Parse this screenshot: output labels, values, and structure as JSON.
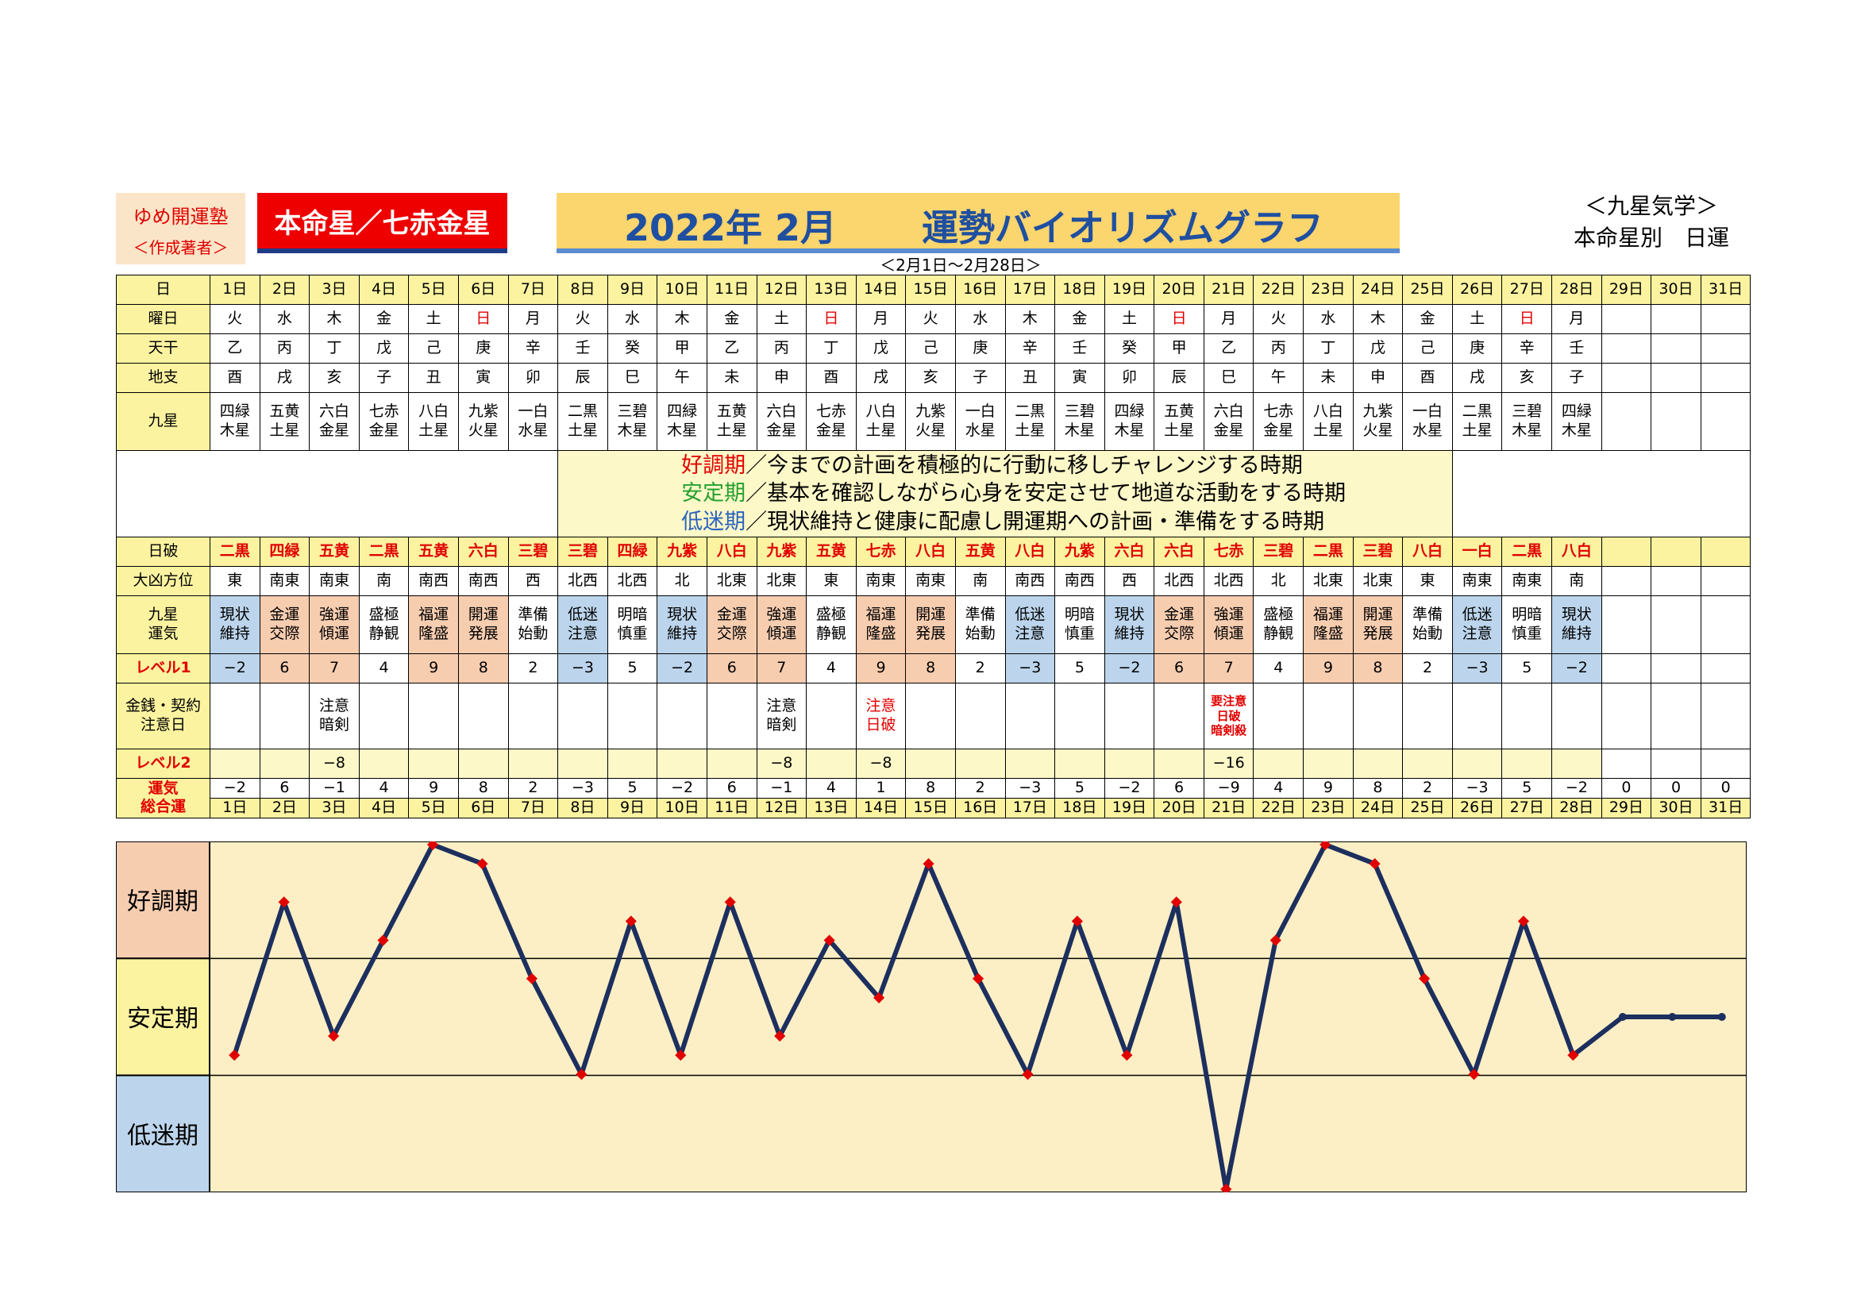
{
  "header": {
    "author_line1": "ゆめ開運塾",
    "author_line2": "＜作成著者＞",
    "honmeisei": "本命星／七赤金星",
    "title_date": "2022年 2月",
    "title_name": "運勢バイオリズムグラフ",
    "range": "＜2月1日～2月28日＞",
    "top_right_1": "＜九星気学＞",
    "top_right_2": "本命星別　日運"
  },
  "labels": {
    "day": "日",
    "weekday": "曜日",
    "tenkan": "天干",
    "chishi": "地支",
    "kyusei": "九星",
    "nichiha": "日破",
    "daikyo": "大凶方位",
    "unki": "九星\n運気",
    "level1": "レベル1",
    "kinsen": "金銭・契約\n注意日",
    "level2": "レベル2",
    "sogo": "運気\n総合運",
    "band_good": "好調期",
    "band_stable": "安定期",
    "band_low": "低迷期"
  },
  "legend": {
    "good_term": "好調期",
    "good_text": "／今までの計画を積極的に行動に移しチャレンジする時期",
    "stable_term": "安定期",
    "stable_text": "／基本を確認しながら心身を安定させて地道な活動をする時期",
    "low_term": "低迷期",
    "low_text": "／現状維持と健康に配慮し開運期への計画・準備をする時期"
  },
  "days": [
    "1日",
    "2日",
    "3日",
    "4日",
    "5日",
    "6日",
    "7日",
    "8日",
    "9日",
    "10日",
    "11日",
    "12日",
    "13日",
    "14日",
    "15日",
    "16日",
    "17日",
    "18日",
    "19日",
    "20日",
    "21日",
    "22日",
    "23日",
    "24日",
    "25日",
    "26日",
    "27日",
    "28日",
    "29日",
    "30日",
    "31日"
  ],
  "weekdays": [
    "火",
    "水",
    "木",
    "金",
    "土",
    "日",
    "月",
    "火",
    "水",
    "木",
    "金",
    "土",
    "日",
    "月",
    "火",
    "水",
    "木",
    "金",
    "土",
    "日",
    "月",
    "火",
    "水",
    "木",
    "金",
    "土",
    "日",
    "月"
  ],
  "tenkan": [
    "乙",
    "丙",
    "丁",
    "戊",
    "己",
    "庚",
    "辛",
    "壬",
    "癸",
    "甲",
    "乙",
    "丙",
    "丁",
    "戊",
    "己",
    "庚",
    "辛",
    "壬",
    "癸",
    "甲",
    "乙",
    "丙",
    "丁",
    "戊",
    "己",
    "庚",
    "辛",
    "壬"
  ],
  "chishi": [
    "酉",
    "戌",
    "亥",
    "子",
    "丑",
    "寅",
    "卯",
    "辰",
    "巳",
    "午",
    "未",
    "申",
    "酉",
    "戌",
    "亥",
    "子",
    "丑",
    "寅",
    "卯",
    "辰",
    "巳",
    "午",
    "未",
    "申",
    "酉",
    "戌",
    "亥",
    "子"
  ],
  "kyusei": [
    "四緑\n木星",
    "五黄\n土星",
    "六白\n金星",
    "七赤\n金星",
    "八白\n土星",
    "九紫\n火星",
    "一白\n水星",
    "二黒\n土星",
    "三碧\n木星",
    "四緑\n木星",
    "五黄\n土星",
    "六白\n金星",
    "七赤\n金星",
    "八白\n土星",
    "九紫\n火星",
    "一白\n水星",
    "二黒\n土星",
    "三碧\n木星",
    "四緑\n木星",
    "五黄\n土星",
    "六白\n金星",
    "七赤\n金星",
    "八白\n土星",
    "九紫\n火星",
    "一白\n水星",
    "二黒\n土星",
    "三碧\n木星",
    "四緑\n木星"
  ],
  "nichiha": [
    "二黒",
    "四緑",
    "五黄",
    "二黒",
    "五黄",
    "六白",
    "三碧",
    "三碧",
    "四緑",
    "九紫",
    "八白",
    "九紫",
    "五黄",
    "七赤",
    "八白",
    "五黄",
    "八白",
    "九紫",
    "六白",
    "六白",
    "七赤",
    "三碧",
    "二黒",
    "三碧",
    "八白",
    "一白",
    "二黒",
    "八白"
  ],
  "daikyo": [
    "東",
    "南東",
    "南東",
    "南",
    "南西",
    "南西",
    "西",
    "北西",
    "北西",
    "北",
    "北東",
    "北東",
    "東",
    "南東",
    "南東",
    "南",
    "南西",
    "南西",
    "西",
    "北西",
    "北西",
    "北",
    "北東",
    "北東",
    "東",
    "南東",
    "南東",
    "南"
  ],
  "unki": [
    "現状\n維持",
    "金運\n交際",
    "強運\n傾運",
    "盛極\n静観",
    "福運\n隆盛",
    "開運\n発展",
    "準備\n始動",
    "低迷\n注意",
    "明暗\n慎重",
    "現状\n維持",
    "金運\n交際",
    "強運\n傾運",
    "盛極\n静観",
    "福運\n隆盛",
    "開運\n発展",
    "準備\n始動",
    "低迷\n注意",
    "明暗\n慎重",
    "現状\n維持",
    "金運\n交際",
    "強運\n傾運",
    "盛極\n静観",
    "福運\n隆盛",
    "開運\n発展",
    "準備\n始動",
    "低迷\n注意",
    "明暗\n慎重",
    "現状\n維持"
  ],
  "level1": [
    "−2",
    "6",
    "7",
    "4",
    "9",
    "8",
    "2",
    "−3",
    "5",
    "−2",
    "6",
    "7",
    "4",
    "9",
    "8",
    "2",
    "−3",
    "5",
    "−2",
    "6",
    "7",
    "4",
    "9",
    "8",
    "2",
    "−3",
    "5",
    "−2"
  ],
  "kinsen": {
    "3": "注意\n暗剣",
    "12": "注意\n暗剣",
    "14": "注意\n日破",
    "21": "要注意\n日破\n暗剣殺"
  },
  "level2": {
    "3": "−8",
    "12": "−8",
    "14": "−8",
    "21": "−16"
  },
  "sogo": [
    "−2",
    "6",
    "−1",
    "4",
    "9",
    "8",
    "2",
    "−3",
    "5",
    "−2",
    "6",
    "−1",
    "4",
    "1",
    "8",
    "2",
    "−3",
    "5",
    "−2",
    "6",
    "−9",
    "4",
    "9",
    "8",
    "2",
    "−3",
    "5",
    "−2",
    "0",
    "0",
    "0"
  ],
  "colors": {
    "pink": "#f7cdb0",
    "blue": "#bcd5ec",
    "cream": "#fbf3a0",
    "line": "#1c2f5e",
    "marker": "#e00000",
    "chart_bg": "#fdefc5"
  },
  "chart_data": {
    "type": "line",
    "x": [
      "1日",
      "2日",
      "3日",
      "4日",
      "5日",
      "6日",
      "7日",
      "8日",
      "9日",
      "10日",
      "11日",
      "12日",
      "13日",
      "14日",
      "15日",
      "16日",
      "17日",
      "18日",
      "19日",
      "20日",
      "21日",
      "22日",
      "23日",
      "24日",
      "25日",
      "26日",
      "27日",
      "28日",
      "29日",
      "30日",
      "31日"
    ],
    "values": [
      -2,
      6,
      -1,
      4,
      9,
      8,
      2,
      -3,
      5,
      -2,
      6,
      -1,
      4,
      1,
      8,
      2,
      -3,
      5,
      -2,
      6,
      -9,
      4,
      9,
      8,
      2,
      -3,
      5,
      -2,
      0,
      0,
      0
    ],
    "ylim": [
      -9,
      9
    ],
    "bands": [
      "好調期",
      "安定期",
      "低迷期"
    ],
    "markers_days": 28
  }
}
